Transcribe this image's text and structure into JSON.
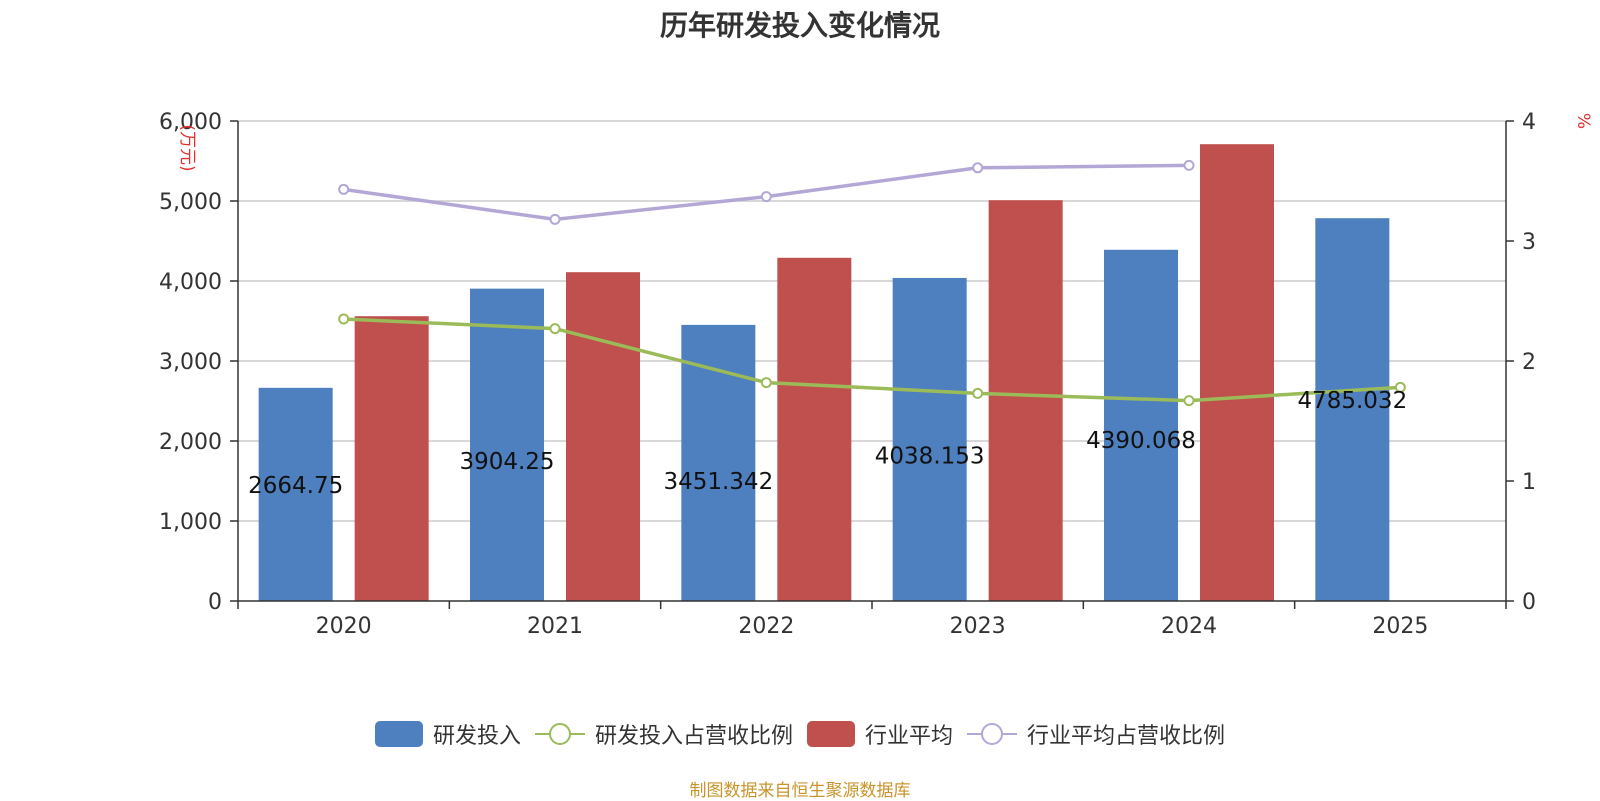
{
  "title": "历年研发投入变化情况",
  "source": "制图数据来自恒生聚源数据库",
  "colors": {
    "rd": "#4e7fbf",
    "industry": "#c0504d",
    "rd_ratio": "#9bbb59",
    "industry_ratio": "#b4a7d6",
    "axis_unit": "#e03030",
    "grid": "#cccccc",
    "axis": "#333333"
  },
  "chart_data": {
    "type": "bar",
    "categories": [
      "2020",
      "2021",
      "2022",
      "2023",
      "2024",
      "2025"
    ],
    "y_left": {
      "unit": "(万元)",
      "range": [
        0,
        6000
      ],
      "ticks": [
        "0",
        "1,000",
        "2,000",
        "3,000",
        "4,000",
        "5,000",
        "6,000"
      ]
    },
    "y_right": {
      "unit": "%",
      "range": [
        0,
        4
      ],
      "ticks": [
        "0",
        "1",
        "2",
        "3",
        "4"
      ]
    },
    "grid": true,
    "legend_position": "bottom",
    "series": [
      {
        "name": "研发投入",
        "kind": "bar",
        "axis": "left",
        "values": [
          2664.75,
          3904.25,
          3451.342,
          4038.153,
          4390.068,
          4785.032
        ],
        "labels": [
          "2664.75",
          "3904.25",
          "3451.342",
          "4038.153",
          "4390.068",
          "4785.032"
        ]
      },
      {
        "name": "研发投入占营收比例",
        "kind": "line",
        "axis": "right",
        "values": [
          2.35,
          2.27,
          1.82,
          1.73,
          1.67,
          1.78
        ]
      },
      {
        "name": "行业平均",
        "kind": "bar",
        "axis": "left",
        "values": [
          3560,
          4110,
          4290,
          5010,
          5710,
          null
        ]
      },
      {
        "name": "行业平均占营收比例",
        "kind": "line",
        "axis": "right",
        "values": [
          3.43,
          3.18,
          3.37,
          3.61,
          3.63,
          null
        ]
      }
    ]
  }
}
